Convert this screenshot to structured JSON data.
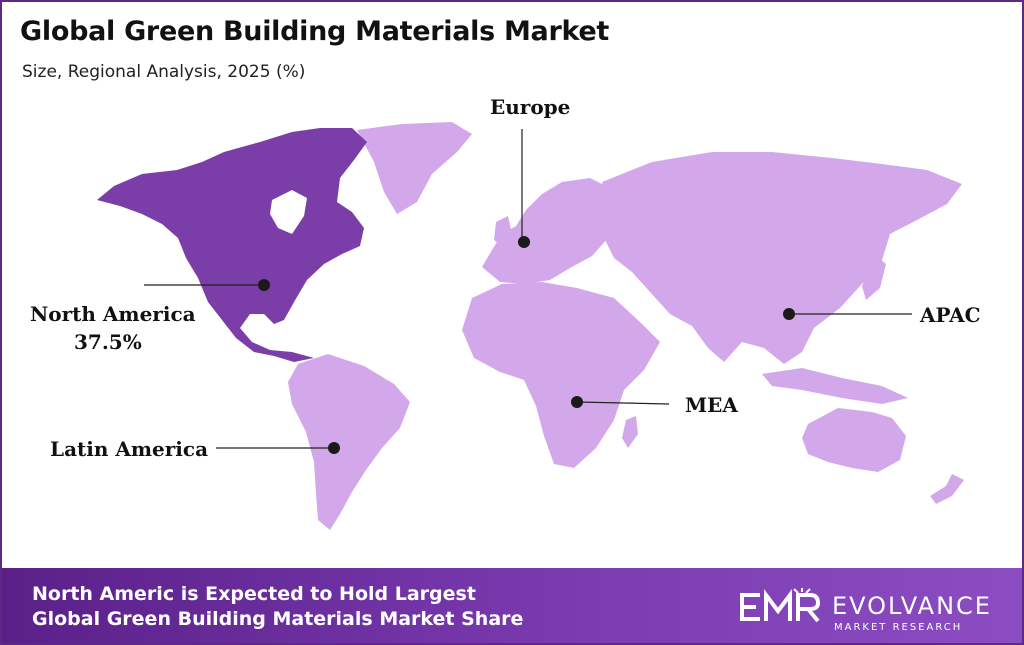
{
  "header": {
    "title": "Global Green Building Materials Market",
    "subtitle": "Size, Regional Analysis, 2025 (%)"
  },
  "regions": [
    {
      "name": "North America",
      "value": "37.5%",
      "highlighted": true
    },
    {
      "name": "Europe",
      "highlighted": false
    },
    {
      "name": "APAC",
      "highlighted": false
    },
    {
      "name": "MEA",
      "highlighted": false
    },
    {
      "name": "Latin America",
      "highlighted": false
    }
  ],
  "colors": {
    "highlight": "#7b3ea8",
    "land": "#d3a8ea",
    "footer": "#6a2c9a",
    "border": "#5a2a86"
  },
  "footer": {
    "line1": "North Americ is Expected to Hold Largest",
    "line2": "Global Green Building Materials Market Share"
  },
  "logo": {
    "name": "EVOLVANCE",
    "tagline": "MARKET RESEARCH"
  }
}
